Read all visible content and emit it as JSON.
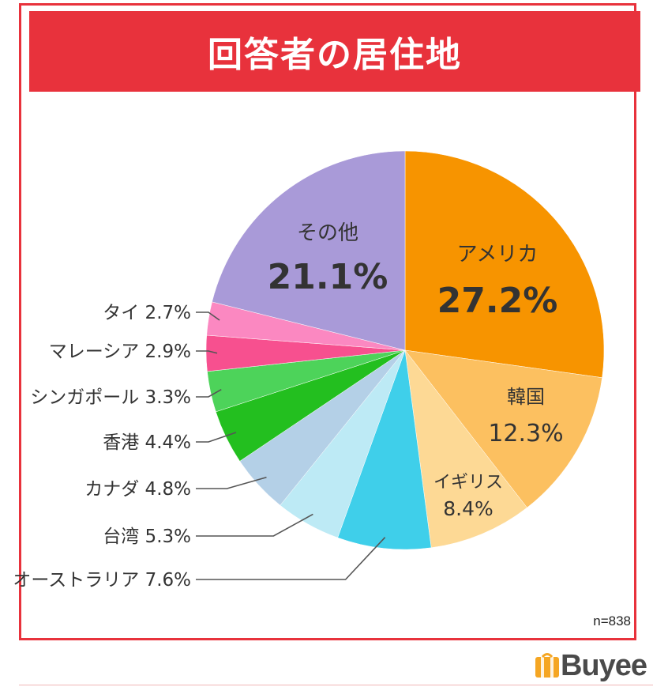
{
  "header": {
    "title": "回答者の居住地"
  },
  "footnote": "n=838",
  "brand": {
    "name": "Buyee",
    "accent": "#f5a623"
  },
  "colors": {
    "frame": "#e8323c",
    "banner": "#e8323c"
  },
  "chart_data": {
    "type": "pie",
    "title": "回答者の居住地",
    "start_angle_deg": 0,
    "direction": "clockwise",
    "slices": [
      {
        "label": "アメリカ",
        "value": 27.2,
        "display": "27.2%",
        "color": "#f79400"
      },
      {
        "label": "韓国",
        "value": 12.3,
        "display": "12.3%",
        "color": "#fcc060"
      },
      {
        "label": "イギリス",
        "value": 8.4,
        "display": "8.4%",
        "color": "#fdd995"
      },
      {
        "label": "オーストラリア",
        "value": 7.6,
        "display": "7.6%",
        "color": "#3fcfea"
      },
      {
        "label": "台湾",
        "value": 5.3,
        "display": "5.3%",
        "color": "#bdeaf5"
      },
      {
        "label": "カナダ",
        "value": 4.8,
        "display": "4.8%",
        "color": "#b4d0e7"
      },
      {
        "label": "香港",
        "value": 4.4,
        "display": "4.4%",
        "color": "#23bf1f"
      },
      {
        "label": "シンガポール",
        "value": 3.3,
        "display": "3.3%",
        "color": "#4dd35a"
      },
      {
        "label": "マレーシア",
        "value": 2.9,
        "display": "2.9%",
        "color": "#f7508f"
      },
      {
        "label": "タイ",
        "value": 2.7,
        "display": "2.7%",
        "color": "#fb88c1"
      },
      {
        "label": "その他",
        "value": 21.1,
        "display": "21.1%",
        "color": "#a99ad8"
      }
    ]
  }
}
